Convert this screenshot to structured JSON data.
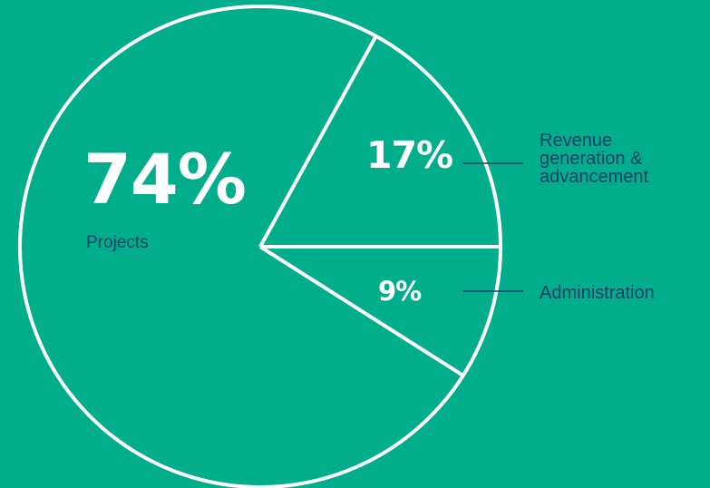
{
  "colors": {
    "background": "#00AE8C",
    "outline": "#FFFFFF",
    "percent_text": "#FFFFFF",
    "label_text": "#1A3F66"
  },
  "chart_data": {
    "type": "pie",
    "slices": [
      {
        "label": "Projects",
        "value": 74,
        "percent_label": "74%"
      },
      {
        "label": "Revenue generation & advancement",
        "value": 17,
        "percent_label": "17%"
      },
      {
        "label": "Administration",
        "value": 9,
        "percent_label": "9%"
      }
    ]
  }
}
